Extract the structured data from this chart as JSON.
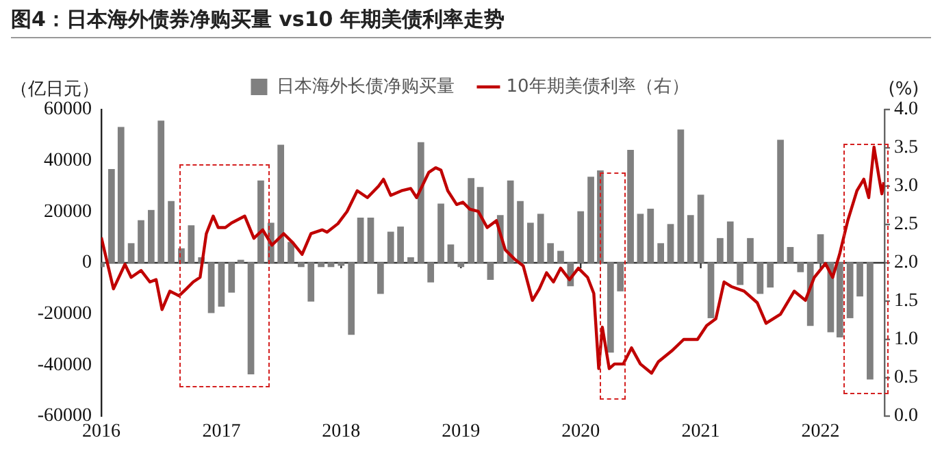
{
  "chart_data": {
    "type": "bar",
    "title": "图4：日本海外债券净购买量 vs10 年期美债利率走势",
    "ylabel": "（亿日元）",
    "y2label": "(%)",
    "legend": "top",
    "grid": false,
    "ref_lines": [
      {
        "axis": "y",
        "value": 0,
        "color": "#333333"
      }
    ],
    "xlim": [
      "2016-01-01",
      "2022-07-15"
    ],
    "xticks": [
      {
        "value": "2016-01-01",
        "label": "2016"
      },
      {
        "value": "2017-01-01",
        "label": "2017"
      },
      {
        "value": "2018-01-01",
        "label": "2018"
      },
      {
        "value": "2019-01-01",
        "label": "2019"
      },
      {
        "value": "2020-01-01",
        "label": "2020"
      },
      {
        "value": "2021-01-01",
        "label": "2021"
      },
      {
        "value": "2022-01-01",
        "label": "2022"
      }
    ],
    "ylim": [
      -60000,
      60000
    ],
    "yticks": [
      -60000,
      -40000,
      -20000,
      0,
      20000,
      40000,
      60000
    ],
    "y2lim": [
      0,
      4
    ],
    "y2ticks": [
      {
        "value": 0,
        "label": "0.0"
      },
      {
        "value": 0.5,
        "label": "0.5"
      },
      {
        "value": 1,
        "label": "1.0"
      },
      {
        "value": 1.5,
        "label": "1.5"
      },
      {
        "value": 2,
        "label": "2.0"
      },
      {
        "value": 2.5,
        "label": "2.5"
      },
      {
        "value": 3,
        "label": "3.0"
      },
      {
        "value": 3.5,
        "label": "3.5"
      },
      {
        "value": 4,
        "label": "4.0"
      }
    ],
    "series": [
      {
        "name": "日本海外长债净购买量",
        "color": "#808080",
        "x": [
          "2016-01",
          "2016-02",
          "2016-03",
          "2016-04",
          "2016-05",
          "2016-06",
          "2016-07",
          "2016-08",
          "2016-09",
          "2016-10",
          "2016-11",
          "2016-12",
          "2017-01",
          "2017-02",
          "2017-03",
          "2017-04",
          "2017-05",
          "2017-06",
          "2017-07",
          "2017-08",
          "2017-09",
          "2017-10",
          "2017-11",
          "2017-12",
          "2018-01",
          "2018-02",
          "2018-03",
          "2018-04",
          "2018-05",
          "2018-06",
          "2018-07",
          "2018-08",
          "2018-09",
          "2018-10",
          "2018-11",
          "2018-12",
          "2019-01",
          "2019-02",
          "2019-03",
          "2019-04",
          "2019-05",
          "2019-06",
          "2019-07",
          "2019-08",
          "2019-09",
          "2019-10",
          "2019-11",
          "2019-12",
          "2020-01",
          "2020-02",
          "2020-03",
          "2020-04",
          "2020-05",
          "2020-06",
          "2020-07",
          "2020-08",
          "2020-09",
          "2020-10",
          "2020-11",
          "2020-12",
          "2021-01",
          "2021-02",
          "2021-03",
          "2021-04",
          "2021-05",
          "2021-06",
          "2021-07",
          "2021-08",
          "2021-09",
          "2021-10",
          "2021-11",
          "2021-12",
          "2022-01",
          "2022-02",
          "2022-03",
          "2022-04",
          "2022-05",
          "2022-06"
        ],
        "values": [
          -1500,
          36500,
          53000,
          7500,
          16500,
          20500,
          55500,
          24000,
          5500,
          14500,
          2000,
          -19500,
          -17000,
          -11500,
          1000,
          -43500,
          32000,
          15500,
          46000,
          8000,
          -1500,
          -15000,
          -1500,
          -1500,
          -1000,
          -28000,
          17500,
          17500,
          -12000,
          12000,
          14000,
          2000,
          47000,
          -7500,
          23000,
          7000,
          -1500,
          33000,
          29500,
          -6500,
          18500,
          32000,
          24000,
          15500,
          19000,
          7500,
          4500,
          -9000,
          20000,
          33500,
          36000,
          -35000,
          -11000,
          44000,
          19000,
          21000,
          7500,
          15000,
          52000,
          18500,
          26500,
          -21500,
          9500,
          16000,
          -8500,
          9500,
          -12000,
          -9500,
          48000,
          6000,
          -3500,
          -24500,
          11000,
          -27000,
          -29000,
          -21500,
          -13000,
          -45500
        ]
      },
      {
        "name": "10年期美债利率（右）",
        "type": "line",
        "axis": "y2",
        "color": "#c00000",
        "marker": "none",
        "line_style": "solid",
        "x": [
          "2016-01-01",
          "2016-02-07",
          "2016-03-13",
          "2016-04-01",
          "2016-05-01",
          "2016-05-28",
          "2016-06-16",
          "2016-07-04",
          "2016-07-28",
          "2016-08-25",
          "2016-09-16",
          "2016-10-07",
          "2016-10-28",
          "2016-11-16",
          "2016-12-07",
          "2016-12-22",
          "2017-01-13",
          "2017-02-01",
          "2017-03-13",
          "2017-04-10",
          "2017-05-07",
          "2017-06-04",
          "2017-07-10",
          "2017-08-07",
          "2017-09-04",
          "2017-10-01",
          "2017-11-04",
          "2017-11-19",
          "2017-12-22",
          "2018-01-19",
          "2018-02-19",
          "2018-03-22",
          "2018-04-25",
          "2018-05-10",
          "2018-06-01",
          "2018-07-04",
          "2018-08-01",
          "2018-08-19",
          "2018-09-25",
          "2018-10-16",
          "2018-11-01",
          "2018-11-22",
          "2018-12-19",
          "2019-01-07",
          "2019-01-28",
          "2019-02-23",
          "2019-03-22",
          "2019-04-19",
          "2019-05-16",
          "2019-06-13",
          "2019-07-10",
          "2019-08-07",
          "2019-08-28",
          "2019-09-19",
          "2019-10-10",
          "2019-11-01",
          "2019-11-28",
          "2019-12-25",
          "2020-01-22",
          "2020-02-10",
          "2020-02-25",
          "2020-03-07",
          "2020-03-28",
          "2020-04-13",
          "2020-05-10",
          "2020-06-04",
          "2020-07-01",
          "2020-08-04",
          "2020-08-25",
          "2020-10-07",
          "2020-11-10",
          "2020-12-22",
          "2021-01-19",
          "2021-02-16",
          "2021-03-13",
          "2021-04-04",
          "2021-05-13",
          "2021-06-22",
          "2021-07-19",
          "2021-09-01",
          "2021-10-13",
          "2021-11-16",
          "2021-12-13",
          "2022-01-16",
          "2022-02-07",
          "2022-02-28",
          "2022-03-25",
          "2022-04-22",
          "2022-05-13",
          "2022-05-28",
          "2022-06-13",
          "2022-06-28",
          "2022-07-07",
          "2022-07-13"
        ],
        "values": [
          2.33,
          1.66,
          1.98,
          1.81,
          1.9,
          1.75,
          1.78,
          1.39,
          1.63,
          1.57,
          1.66,
          1.75,
          1.81,
          2.38,
          2.61,
          2.46,
          2.46,
          2.52,
          2.61,
          2.32,
          2.43,
          2.23,
          2.38,
          2.26,
          2.11,
          2.38,
          2.43,
          2.4,
          2.51,
          2.67,
          2.94,
          2.85,
          3.0,
          3.09,
          2.88,
          2.94,
          2.97,
          2.85,
          3.18,
          3.24,
          3.21,
          2.94,
          2.76,
          2.79,
          2.7,
          2.67,
          2.46,
          2.55,
          2.17,
          2.05,
          1.96,
          1.51,
          1.66,
          1.87,
          1.75,
          1.93,
          1.78,
          1.93,
          1.81,
          1.6,
          0.62,
          1.16,
          0.62,
          0.68,
          0.68,
          0.89,
          0.68,
          0.56,
          0.71,
          0.86,
          1.0,
          1.0,
          1.18,
          1.27,
          1.75,
          1.69,
          1.63,
          1.48,
          1.21,
          1.33,
          1.63,
          1.51,
          1.81,
          1.99,
          1.81,
          2.11,
          2.55,
          2.94,
          3.09,
          2.85,
          3.51,
          3.12,
          2.9,
          3.05
        ]
      }
    ]
  }
}
